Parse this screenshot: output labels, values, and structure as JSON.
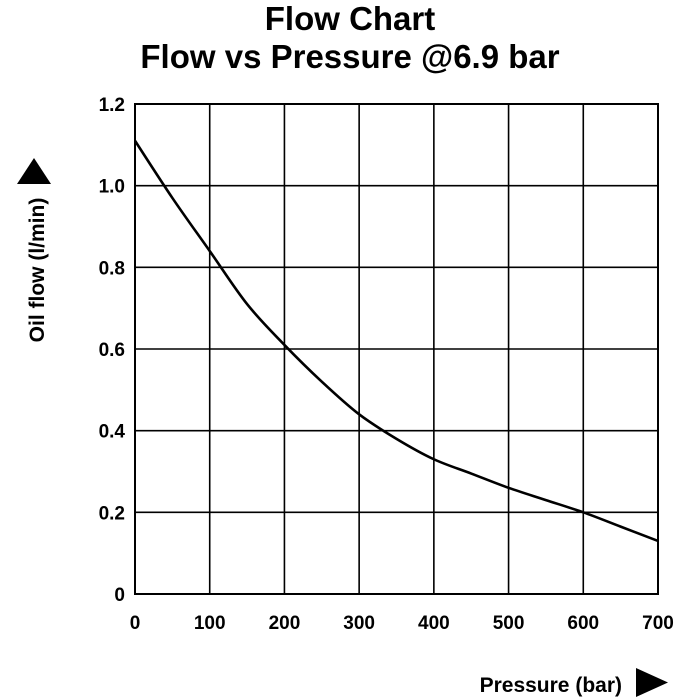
{
  "chart_data": {
    "type": "line",
    "title": "Flow Chart",
    "subtitle": "Flow vs Pressure @6.9 bar",
    "xlabel": "Pressure (bar)",
    "ylabel": "Oil flow (l/min)",
    "xlim": [
      0,
      700
    ],
    "ylim": [
      0,
      1.2
    ],
    "x_ticks": [
      "0",
      "100",
      "200",
      "300",
      "400",
      "500",
      "600",
      "700"
    ],
    "y_ticks": [
      "0",
      "0.2",
      "0.4",
      "0.6",
      "0.8",
      "1.0",
      "1.2"
    ],
    "grid": true,
    "series": [
      {
        "x": [
          0,
          50,
          100,
          150,
          200,
          250,
          300,
          350,
          400,
          450,
          500,
          550,
          600,
          650,
          700
        ],
        "y": [
          1.11,
          0.97,
          0.84,
          0.71,
          0.61,
          0.52,
          0.44,
          0.38,
          0.33,
          0.295,
          0.26,
          0.23,
          0.2,
          0.165,
          0.13
        ]
      }
    ]
  }
}
